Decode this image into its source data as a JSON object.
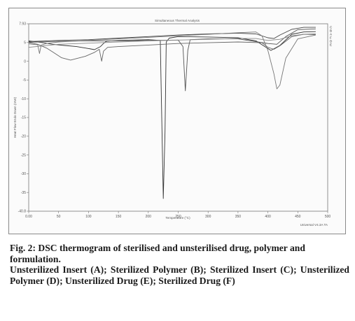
{
  "chart_data": {
    "type": "line",
    "title": "Simultaneous Thermal Analysis",
    "xlabel": "Temperature (°C)",
    "ylabel": "Heat Flow Endo Down (mW)",
    "x_ticks": [
      "0.00",
      "50",
      "100",
      "150",
      "200",
      "250",
      "300",
      "350",
      "400",
      "450",
      "500"
    ],
    "y_ticks": [
      "7.93",
      "5",
      "0",
      "-5",
      "-10",
      "-15",
      "-20",
      "-25",
      "-30",
      "-35",
      "-40.8"
    ],
    "xlim": [
      0,
      500
    ],
    "ylim": [
      -40.8,
      7.93
    ],
    "grid": false,
    "legend_position": "top-right",
    "series": [
      {
        "name": "A",
        "color": "#333333",
        "x": [
          0,
          20,
          40,
          60,
          80,
          100,
          110,
          120,
          125,
          130,
          150,
          200,
          220,
          225,
          228,
          230,
          235,
          250,
          300,
          350,
          380,
          395,
          405,
          420,
          440,
          460,
          480
        ],
        "y": [
          3.5,
          3.1,
          2.6,
          2.3,
          2.0,
          1.5,
          1.2,
          2.0,
          2.8,
          3.4,
          3.6,
          3.8,
          3.6,
          -37.5,
          -20,
          3.2,
          4.2,
          4.6,
          4.5,
          4.3,
          3.5,
          2.0,
          1.0,
          2.3,
          5.2,
          5.8,
          5.9
        ]
      },
      {
        "name": "B",
        "color": "#555555",
        "x": [
          0,
          50,
          100,
          150,
          200,
          250,
          258,
          262,
          266,
          270,
          300,
          350,
          400,
          415,
          430,
          450,
          480
        ],
        "y": [
          3.1,
          3.4,
          3.5,
          3.5,
          3.6,
          3.7,
          2.0,
          -9.5,
          1.0,
          3.8,
          4.0,
          4.0,
          2.8,
          2.6,
          4.6,
          6.4,
          6.6
        ]
      },
      {
        "name": "C",
        "color": "#444444",
        "x": [
          0,
          50,
          100,
          150,
          200,
          250,
          300,
          350,
          380,
          400,
          410,
          420,
          440,
          460,
          480
        ],
        "y": [
          3.3,
          3.6,
          3.8,
          4.2,
          4.6,
          5.0,
          5.3,
          5.5,
          5.3,
          4.3,
          4.1,
          5.0,
          6.5,
          7.0,
          7.0
        ]
      },
      {
        "name": "D",
        "color": "#666666",
        "x": [
          0,
          15,
          30,
          40,
          55,
          70,
          95,
          110,
          118,
          122,
          125,
          132,
          150,
          200,
          250,
          300,
          350,
          390,
          400,
          410,
          420,
          440,
          460,
          480
        ],
        "y": [
          3.0,
          2.6,
          1.6,
          0.6,
          -0.9,
          -1.5,
          -0.5,
          0.5,
          1.3,
          -1.8,
          0.8,
          1.8,
          2.0,
          2.4,
          2.8,
          3.0,
          3.2,
          3.0,
          1.8,
          1.3,
          2.2,
          4.6,
          5.2,
          5.1
        ]
      },
      {
        "name": "E",
        "color": "#777777",
        "x": [
          0,
          15,
          18,
          21,
          30,
          50,
          100,
          150,
          200,
          250,
          300,
          350,
          380,
          390,
          400,
          410,
          415,
          420,
          430,
          450,
          480
        ],
        "y": [
          2.7,
          2.5,
          0.2,
          2.4,
          2.8,
          3.2,
          3.6,
          4.0,
          4.4,
          4.8,
          5.2,
          5.6,
          5.8,
          4.8,
          1.0,
          -5.0,
          -9.0,
          -8.0,
          -1.0,
          4.0,
          5.0
        ]
      },
      {
        "name": "F",
        "color": "#888888",
        "x": [
          0,
          50,
          100,
          150,
          200,
          250,
          300,
          350,
          380,
          400,
          420,
          440,
          460,
          480
        ],
        "y": [
          1.8,
          2.6,
          2.9,
          3.2,
          3.5,
          3.7,
          3.9,
          4.1,
          4.1,
          3.6,
          3.9,
          4.8,
          5.2,
          5.3
        ]
      }
    ],
    "annotations": [
      "Universal V4.3A TA"
    ]
  },
  "caption": {
    "heading": "Fig. 2: DSC thermogram of sterilised and unsterilised drug, polymer and formulation.",
    "body": "Unsterilized Insert (A); Sterilized Polymer (B); Sterilized Insert (C); Unsterilized Polymer (D); Unsterilized Drug (E); Sterilized Drug (F)"
  }
}
